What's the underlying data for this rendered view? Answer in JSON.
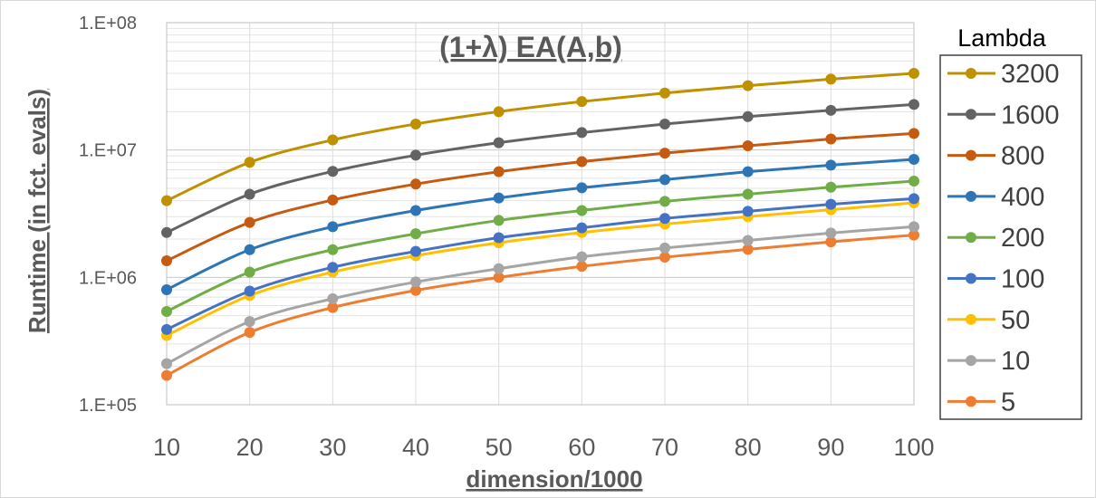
{
  "chart_data": {
    "type": "line",
    "title": "(1+λ) EA(A,b)",
    "xlabel": "dimension/1000",
    "ylabel": "Runtime (in fct. evals)",
    "x": [
      10,
      20,
      30,
      40,
      50,
      60,
      70,
      80,
      90,
      100
    ],
    "x_ticks": [
      "10",
      "20",
      "30",
      "40",
      "50",
      "60",
      "70",
      "80",
      "90",
      "100"
    ],
    "y_scale": "log",
    "ylim": [
      100000,
      100000000
    ],
    "y_ticks": [
      {
        "value": 100000,
        "label": "1.E+05"
      },
      {
        "value": 1000000,
        "label": "1.E+06"
      },
      {
        "value": 10000000,
        "label": "1.E+07"
      },
      {
        "value": 100000000,
        "label": "1.E+08"
      }
    ],
    "grid": true,
    "legend": {
      "title": "Lambda",
      "position": "right"
    },
    "series": [
      {
        "name": "3200",
        "color": "#BF9000",
        "values": [
          4000000,
          8000000,
          12000000,
          16000000,
          20000000,
          24000000,
          28000000,
          32000000,
          36000000,
          40000000
        ]
      },
      {
        "name": "1600",
        "color": "#636363",
        "values": [
          2250000,
          4500000,
          6800000,
          9100000,
          11400000,
          13700000,
          16000000,
          18300000,
          20500000,
          22800000
        ]
      },
      {
        "name": "800",
        "color": "#C55A11",
        "values": [
          1350000,
          2700000,
          4050000,
          5400000,
          6750000,
          8100000,
          9450000,
          10800000,
          12200000,
          13500000
        ]
      },
      {
        "name": "400",
        "color": "#2E75B6",
        "values": [
          800000,
          1650000,
          2500000,
          3350000,
          4200000,
          5050000,
          5850000,
          6750000,
          7600000,
          8450000
        ]
      },
      {
        "name": "200",
        "color": "#70AD47",
        "values": [
          540000,
          1100000,
          1650000,
          2200000,
          2800000,
          3350000,
          3950000,
          4500000,
          5100000,
          5700000
        ]
      },
      {
        "name": "100",
        "color": "#4472C4",
        "values": [
          390000,
          780000,
          1200000,
          1600000,
          2050000,
          2450000,
          2900000,
          3300000,
          3750000,
          4150000
        ]
      },
      {
        "name": "50",
        "color": "#FFC000",
        "values": [
          350000,
          720000,
          1100000,
          1480000,
          1870000,
          2250000,
          2620000,
          3000000,
          3400000,
          3850000
        ]
      },
      {
        "name": "10",
        "color": "#A5A5A5",
        "values": [
          210000,
          450000,
          680000,
          920000,
          1170000,
          1450000,
          1700000,
          1950000,
          2230000,
          2500000
        ]
      },
      {
        "name": "5",
        "color": "#ED7D31",
        "values": [
          170000,
          370000,
          580000,
          790000,
          1000000,
          1220000,
          1440000,
          1660000,
          1900000,
          2150000
        ]
      }
    ]
  }
}
